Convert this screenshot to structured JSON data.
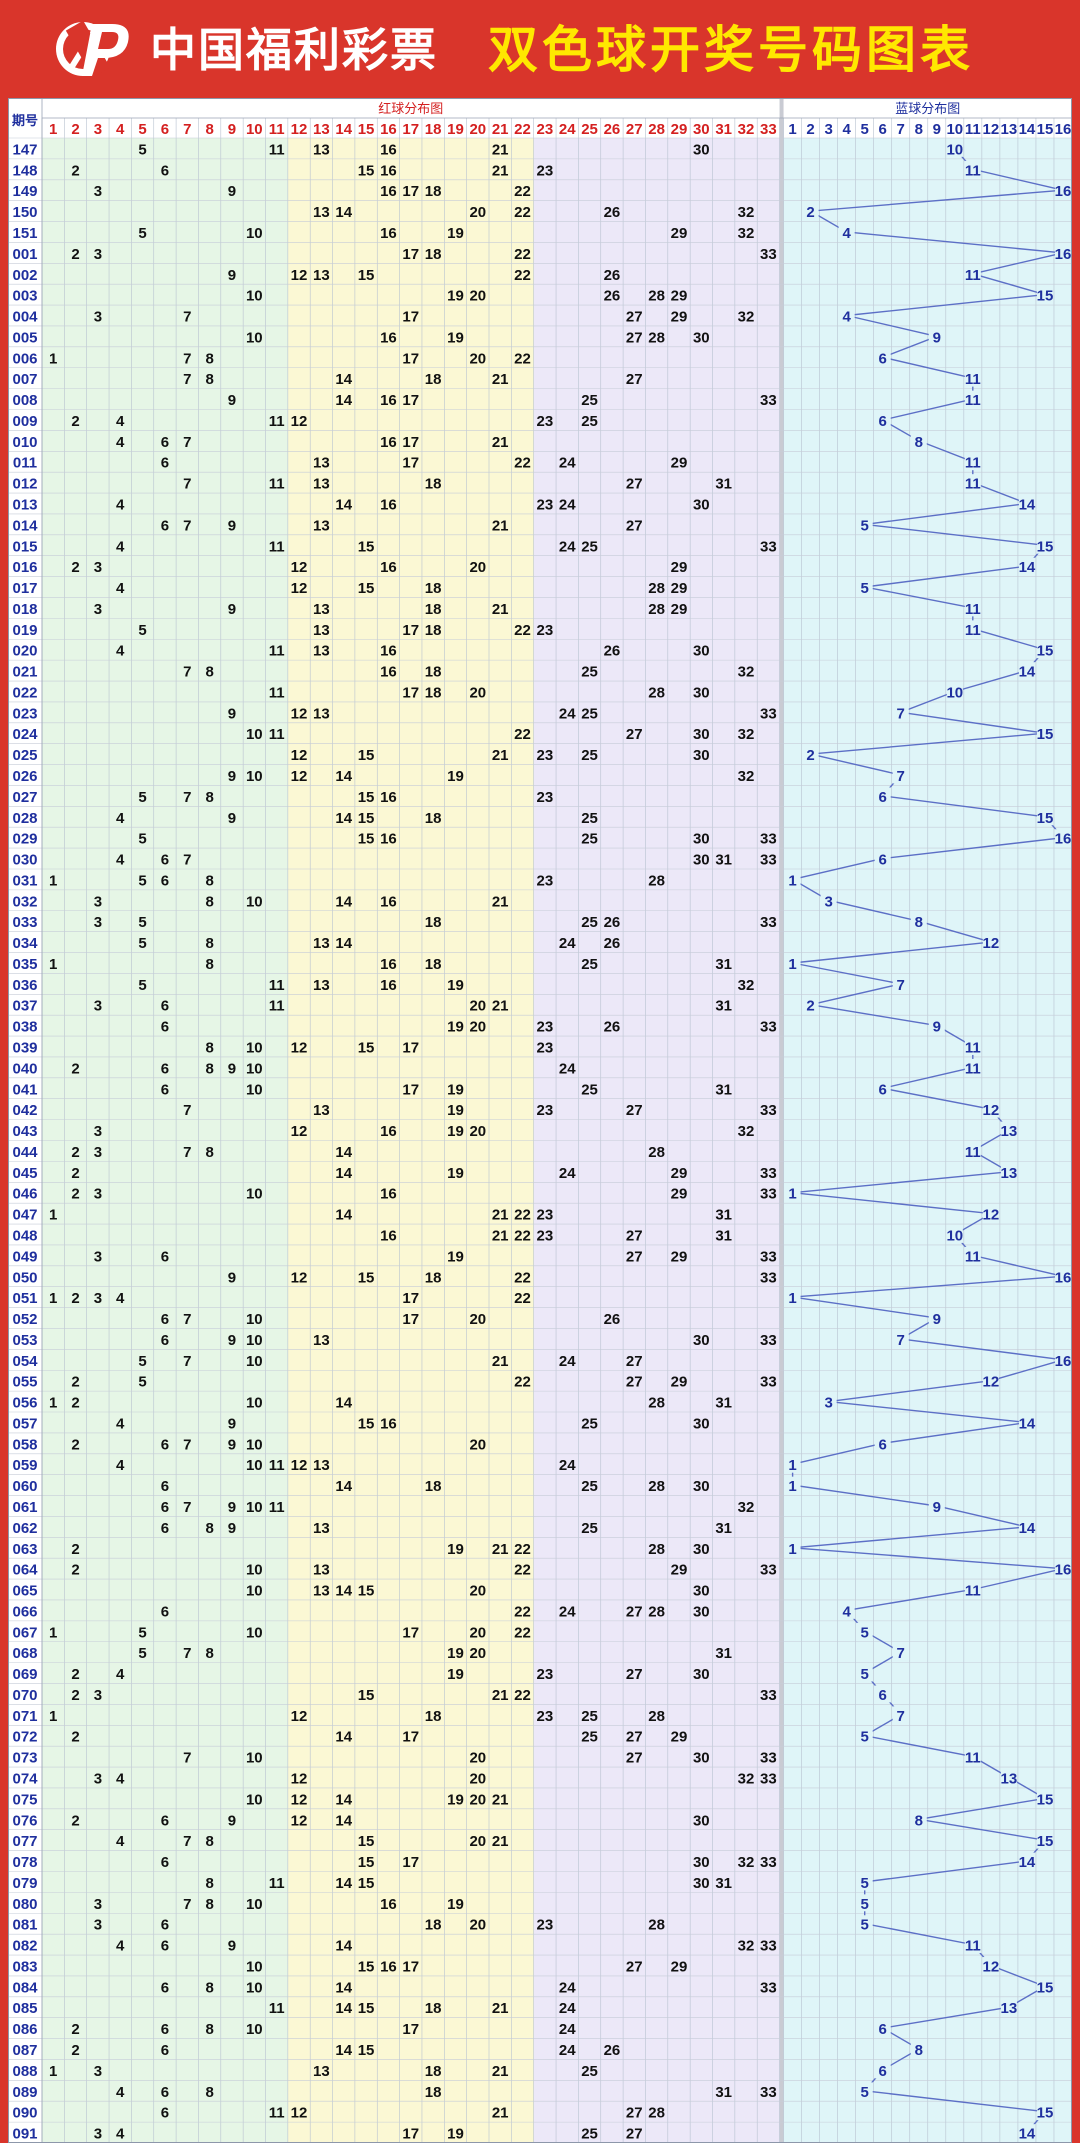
{
  "header": {
    "brand_name": "中国福利彩票",
    "page_title": "双色球开奖号码图表",
    "logo_icon": "lottery-logo-icon"
  },
  "colors": {
    "background": "#d9352b",
    "title": "#ffe800",
    "red_number": "#d42020",
    "black_number": "#111111",
    "blue_number": "#1f2f9e",
    "blue_line": "#5c6fc6",
    "zone_1": "#e6f6e6",
    "zone_2": "#fbf8d4",
    "zone_3": "#ece8f8",
    "zone_4": "#dff5f8"
  },
  "chart_data": {
    "type": "table",
    "title": "双色球开奖号码图表",
    "issue_header": "期号",
    "red_section_label": "红球分布图",
    "blue_section_label": "蓝球分布图",
    "red_columns": [
      "1",
      "2",
      "3",
      "4",
      "5",
      "6",
      "7",
      "8",
      "9",
      "10",
      "11",
      "12",
      "13",
      "14",
      "15",
      "16",
      "17",
      "18",
      "19",
      "20",
      "21",
      "22",
      "23",
      "24",
      "25",
      "26",
      "27",
      "28",
      "29",
      "30",
      "31",
      "32",
      "33"
    ],
    "blue_columns": [
      "1",
      "2",
      "3",
      "4",
      "5",
      "6",
      "7",
      "8",
      "9",
      "10",
      "11",
      "12",
      "13",
      "14",
      "15",
      "16"
    ],
    "rows": [
      {
        "issue": "147",
        "red": [
          5,
          11,
          13,
          16,
          21,
          30
        ],
        "blue": 10
      },
      {
        "issue": "148",
        "red": [
          2,
          6,
          15,
          16,
          21,
          23
        ],
        "blue": 11
      },
      {
        "issue": "149",
        "red": [
          3,
          9,
          16,
          17,
          18,
          22
        ],
        "blue": 16
      },
      {
        "issue": "150",
        "red": [
          13,
          14,
          20,
          22,
          26,
          32
        ],
        "blue": 2
      },
      {
        "issue": "151",
        "red": [
          5,
          10,
          16,
          19,
          29,
          32
        ],
        "blue": 4
      },
      {
        "issue": "001",
        "red": [
          2,
          3,
          17,
          18,
          22,
          33
        ],
        "blue": 16
      },
      {
        "issue": "002",
        "red": [
          9,
          12,
          13,
          15,
          22,
          26
        ],
        "blue": 11
      },
      {
        "issue": "003",
        "red": [
          10,
          19,
          20,
          26,
          28,
          29
        ],
        "blue": 15
      },
      {
        "issue": "004",
        "red": [
          3,
          7,
          17,
          27,
          29,
          32
        ],
        "blue": 4
      },
      {
        "issue": "005",
        "red": [
          10,
          16,
          19,
          27,
          28,
          30
        ],
        "blue": 9
      },
      {
        "issue": "006",
        "red": [
          1,
          7,
          8,
          17,
          20,
          22
        ],
        "blue": 6
      },
      {
        "issue": "007",
        "red": [
          7,
          8,
          14,
          18,
          21,
          27
        ],
        "blue": 11
      },
      {
        "issue": "008",
        "red": [
          9,
          14,
          16,
          17,
          25,
          33
        ],
        "blue": 11
      },
      {
        "issue": "009",
        "red": [
          2,
          4,
          11,
          12,
          23,
          25
        ],
        "blue": 6
      },
      {
        "issue": "010",
        "red": [
          4,
          6,
          7,
          16,
          17,
          21
        ],
        "blue": 8
      },
      {
        "issue": "011",
        "red": [
          6,
          13,
          17,
          22,
          24,
          29
        ],
        "blue": 11
      },
      {
        "issue": "012",
        "red": [
          7,
          11,
          13,
          18,
          27,
          31
        ],
        "blue": 11
      },
      {
        "issue": "013",
        "red": [
          4,
          14,
          16,
          23,
          24,
          30
        ],
        "blue": 14
      },
      {
        "issue": "014",
        "red": [
          6,
          7,
          9,
          13,
          21,
          27
        ],
        "blue": 5
      },
      {
        "issue": "015",
        "red": [
          4,
          11,
          15,
          24,
          25,
          33
        ],
        "blue": 15
      },
      {
        "issue": "016",
        "red": [
          2,
          3,
          12,
          16,
          20,
          29
        ],
        "blue": 14
      },
      {
        "issue": "017",
        "red": [
          4,
          12,
          15,
          18,
          28,
          29
        ],
        "blue": 5
      },
      {
        "issue": "018",
        "red": [
          3,
          9,
          13,
          18,
          21,
          28,
          29
        ],
        "blue": 11
      },
      {
        "issue": "019",
        "red": [
          5,
          13,
          17,
          18,
          22,
          23
        ],
        "blue": 11
      },
      {
        "issue": "020",
        "red": [
          4,
          11,
          13,
          16,
          26,
          30
        ],
        "blue": 15
      },
      {
        "issue": "021",
        "red": [
          7,
          8,
          16,
          18,
          25,
          32
        ],
        "blue": 14
      },
      {
        "issue": "022",
        "red": [
          11,
          17,
          18,
          20,
          28,
          30
        ],
        "blue": 10
      },
      {
        "issue": "023",
        "red": [
          9,
          12,
          13,
          24,
          25,
          33
        ],
        "blue": 7
      },
      {
        "issue": "024",
        "red": [
          10,
          11,
          22,
          27,
          30,
          32
        ],
        "blue": 15
      },
      {
        "issue": "025",
        "red": [
          12,
          15,
          21,
          23,
          25,
          30
        ],
        "blue": 2
      },
      {
        "issue": "026",
        "red": [
          9,
          10,
          12,
          14,
          19,
          32
        ],
        "blue": 7
      },
      {
        "issue": "027",
        "red": [
          5,
          7,
          8,
          15,
          16,
          23
        ],
        "blue": 6
      },
      {
        "issue": "028",
        "red": [
          4,
          9,
          14,
          15,
          18,
          25
        ],
        "blue": 15
      },
      {
        "issue": "029",
        "red": [
          5,
          15,
          16,
          25,
          30,
          33
        ],
        "blue": 16
      },
      {
        "issue": "030",
        "red": [
          4,
          6,
          7,
          30,
          31,
          33
        ],
        "blue": 6
      },
      {
        "issue": "031",
        "red": [
          1,
          5,
          6,
          8,
          23,
          28
        ],
        "blue": 1
      },
      {
        "issue": "032",
        "red": [
          3,
          8,
          10,
          14,
          16,
          21
        ],
        "blue": 3
      },
      {
        "issue": "033",
        "red": [
          3,
          5,
          18,
          25,
          26,
          33
        ],
        "blue": 8
      },
      {
        "issue": "034",
        "red": [
          5,
          8,
          13,
          14,
          24,
          26
        ],
        "blue": 12
      },
      {
        "issue": "035",
        "red": [
          1,
          8,
          16,
          18,
          25,
          31
        ],
        "blue": 1
      },
      {
        "issue": "036",
        "red": [
          5,
          11,
          13,
          16,
          19,
          32
        ],
        "blue": 7
      },
      {
        "issue": "037",
        "red": [
          3,
          6,
          11,
          20,
          21,
          31
        ],
        "blue": 2
      },
      {
        "issue": "038",
        "red": [
          6,
          19,
          20,
          23,
          26,
          33
        ],
        "blue": 9
      },
      {
        "issue": "039",
        "red": [
          8,
          10,
          12,
          15,
          17,
          23
        ],
        "blue": 11
      },
      {
        "issue": "040",
        "red": [
          2,
          6,
          8,
          9,
          10,
          24
        ],
        "blue": 11
      },
      {
        "issue": "041",
        "red": [
          6,
          10,
          17,
          19,
          25,
          31
        ],
        "blue": 6
      },
      {
        "issue": "042",
        "red": [
          7,
          13,
          19,
          23,
          27,
          33
        ],
        "blue": 12
      },
      {
        "issue": "043",
        "red": [
          3,
          12,
          16,
          19,
          20,
          32
        ],
        "blue": 13
      },
      {
        "issue": "044",
        "red": [
          2,
          3,
          7,
          8,
          14,
          28
        ],
        "blue": 11
      },
      {
        "issue": "045",
        "red": [
          2,
          14,
          19,
          24,
          29,
          33
        ],
        "blue": 13
      },
      {
        "issue": "046",
        "red": [
          2,
          3,
          10,
          16,
          29,
          33
        ],
        "blue": 1
      },
      {
        "issue": "047",
        "red": [
          1,
          14,
          21,
          22,
          23,
          31
        ],
        "blue": 12
      },
      {
        "issue": "048",
        "red": [
          16,
          21,
          22,
          23,
          27,
          31
        ],
        "blue": 10
      },
      {
        "issue": "049",
        "red": [
          3,
          6,
          19,
          27,
          29,
          33
        ],
        "blue": 11
      },
      {
        "issue": "050",
        "red": [
          9,
          12,
          15,
          18,
          22,
          33
        ],
        "blue": 16
      },
      {
        "issue": "051",
        "red": [
          1,
          2,
          3,
          4,
          17,
          22
        ],
        "blue": 1
      },
      {
        "issue": "052",
        "red": [
          6,
          7,
          10,
          17,
          20,
          26
        ],
        "blue": 9
      },
      {
        "issue": "053",
        "red": [
          6,
          9,
          10,
          13,
          30,
          33
        ],
        "blue": 7
      },
      {
        "issue": "054",
        "red": [
          5,
          7,
          10,
          21,
          24,
          27
        ],
        "blue": 16
      },
      {
        "issue": "055",
        "red": [
          2,
          5,
          22,
          27,
          29,
          33
        ],
        "blue": 12
      },
      {
        "issue": "056",
        "red": [
          1,
          2,
          10,
          14,
          28,
          31
        ],
        "blue": 3
      },
      {
        "issue": "057",
        "red": [
          4,
          9,
          15,
          16,
          25,
          30
        ],
        "blue": 14
      },
      {
        "issue": "058",
        "red": [
          2,
          6,
          7,
          9,
          10,
          20
        ],
        "blue": 6
      },
      {
        "issue": "059",
        "red": [
          4,
          10,
          11,
          12,
          13,
          24
        ],
        "blue": 1
      },
      {
        "issue": "060",
        "red": [
          6,
          14,
          18,
          25,
          28,
          30
        ],
        "blue": 1
      },
      {
        "issue": "061",
        "red": [
          6,
          7,
          9,
          10,
          11,
          32
        ],
        "blue": 9
      },
      {
        "issue": "062",
        "red": [
          6,
          8,
          9,
          13,
          25,
          31
        ],
        "blue": 14
      },
      {
        "issue": "063",
        "red": [
          2,
          19,
          21,
          22,
          28,
          30
        ],
        "blue": 1
      },
      {
        "issue": "064",
        "red": [
          2,
          10,
          13,
          22,
          29,
          33
        ],
        "blue": 16
      },
      {
        "issue": "065",
        "red": [
          10,
          13,
          14,
          15,
          20,
          30
        ],
        "blue": 11
      },
      {
        "issue": "066",
        "red": [
          6,
          22,
          24,
          27,
          28,
          30
        ],
        "blue": 4
      },
      {
        "issue": "067",
        "red": [
          1,
          5,
          10,
          17,
          20,
          22
        ],
        "blue": 5
      },
      {
        "issue": "068",
        "red": [
          5,
          7,
          8,
          19,
          20,
          31
        ],
        "blue": 7
      },
      {
        "issue": "069",
        "red": [
          2,
          4,
          19,
          23,
          27,
          30
        ],
        "blue": 5
      },
      {
        "issue": "070",
        "red": [
          2,
          3,
          15,
          21,
          22,
          33
        ],
        "blue": 6
      },
      {
        "issue": "071",
        "red": [
          1,
          12,
          18,
          23,
          25,
          28
        ],
        "blue": 7
      },
      {
        "issue": "072",
        "red": [
          2,
          14,
          17,
          25,
          27,
          29
        ],
        "blue": 5
      },
      {
        "issue": "073",
        "red": [
          7,
          10,
          20,
          27,
          30,
          33
        ],
        "blue": 11
      },
      {
        "issue": "074",
        "red": [
          3,
          4,
          12,
          20,
          32,
          33
        ],
        "blue": 13
      },
      {
        "issue": "075",
        "red": [
          10,
          12,
          14,
          19,
          20,
          21
        ],
        "blue": 15
      },
      {
        "issue": "076",
        "red": [
          2,
          6,
          9,
          12,
          14,
          30
        ],
        "blue": 8
      },
      {
        "issue": "077",
        "red": [
          4,
          7,
          8,
          15,
          20,
          21
        ],
        "blue": 15
      },
      {
        "issue": "078",
        "red": [
          6,
          15,
          17,
          30,
          32,
          33
        ],
        "blue": 14
      },
      {
        "issue": "079",
        "red": [
          8,
          11,
          14,
          15,
          30,
          31
        ],
        "blue": 5
      },
      {
        "issue": "080",
        "red": [
          3,
          7,
          8,
          10,
          16,
          19
        ],
        "blue": 5
      },
      {
        "issue": "081",
        "red": [
          3,
          6,
          18,
          20,
          23,
          28
        ],
        "blue": 5
      },
      {
        "issue": "082",
        "red": [
          4,
          6,
          9,
          14,
          32,
          33
        ],
        "blue": 11
      },
      {
        "issue": "083",
        "red": [
          10,
          15,
          16,
          17,
          27,
          29
        ],
        "blue": 12
      },
      {
        "issue": "084",
        "red": [
          6,
          8,
          10,
          14,
          24,
          33
        ],
        "blue": 15
      },
      {
        "issue": "085",
        "red": [
          11,
          14,
          15,
          18,
          21,
          24
        ],
        "blue": 13
      },
      {
        "issue": "086",
        "red": [
          2,
          6,
          8,
          10,
          17,
          24
        ],
        "blue": 6
      },
      {
        "issue": "087",
        "red": [
          2,
          6,
          14,
          15,
          24,
          26
        ],
        "blue": 8
      },
      {
        "issue": "088",
        "red": [
          1,
          3,
          13,
          18,
          21,
          25
        ],
        "blue": 6
      },
      {
        "issue": "089",
        "red": [
          4,
          6,
          8,
          18,
          31,
          33
        ],
        "blue": 5
      },
      {
        "issue": "090",
        "red": [
          6,
          11,
          12,
          21,
          27,
          28
        ],
        "blue": 15
      },
      {
        "issue": "091",
        "red": [
          3,
          4,
          17,
          19,
          25,
          27
        ],
        "blue": 14
      }
    ]
  }
}
